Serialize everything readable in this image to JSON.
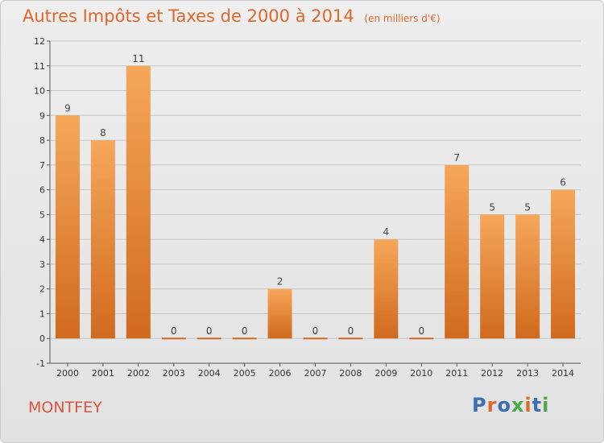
{
  "header": {
    "title": "Autres Impôts et Taxes de 2000 à 2014",
    "subtitle": "(en milliers d'€)"
  },
  "footer": {
    "city": "MONTFEY",
    "logo_text": "Proxiti",
    "logo_colors": [
      "#3a6fb5",
      "#e0672c",
      "#3a6fb5",
      "#4aa84a",
      "#e0672c",
      "#3a6fb5",
      "#4aa84a"
    ]
  },
  "colors": {
    "title": "#e0672c",
    "city": "#d8553f",
    "bar_light": "#f6a75a",
    "bar_dark": "#d06a1e",
    "grid": "#c8c8c8"
  },
  "chart_data": {
    "type": "bar",
    "categories": [
      "2000",
      "2001",
      "2002",
      "2003",
      "2004",
      "2005",
      "2006",
      "2007",
      "2008",
      "2009",
      "2010",
      "2011",
      "2012",
      "2013",
      "2014"
    ],
    "values": [
      9,
      8,
      11,
      0,
      0,
      0,
      2,
      0,
      0,
      4,
      0,
      7,
      5,
      5,
      6
    ],
    "data_labels": [
      "9",
      "8",
      "11",
      "0",
      "0",
      "0",
      "2",
      "0",
      "0",
      "4",
      "0",
      "7",
      "5",
      "5",
      "6"
    ],
    "yticks": [
      -1,
      0,
      1,
      2,
      3,
      4,
      5,
      6,
      7,
      8,
      9,
      10,
      11,
      12
    ],
    "ylim": [
      -1,
      12
    ],
    "title": "Autres Impôts et Taxes de 2000 à 2014",
    "xlabel": "",
    "ylabel": "",
    "grid": true
  }
}
